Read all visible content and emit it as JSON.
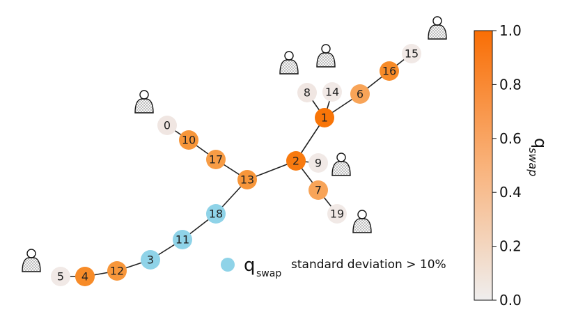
{
  "nodes": [
    {
      "label": "0"
    },
    {
      "label": "10"
    },
    {
      "label": "17"
    },
    {
      "label": "13"
    },
    {
      "label": "2"
    },
    {
      "label": "9"
    },
    {
      "label": "1"
    },
    {
      "label": "8"
    },
    {
      "label": "14"
    },
    {
      "label": "6"
    },
    {
      "label": "16"
    },
    {
      "label": "15"
    },
    {
      "label": "7"
    },
    {
      "label": "19"
    },
    {
      "label": "18"
    },
    {
      "label": "11"
    },
    {
      "label": "3"
    },
    {
      "label": "12"
    },
    {
      "label": "4"
    },
    {
      "label": "5"
    }
  ],
  "legend": {
    "symbol": "q",
    "subscript": "swap",
    "text": "standard deviation > 10%"
  },
  "colorbar": {
    "label": "q",
    "label_subscript": "swap",
    "ticks": [
      "0.0",
      "0.2",
      "0.4",
      "0.6",
      "0.8",
      "1.0"
    ]
  }
}
